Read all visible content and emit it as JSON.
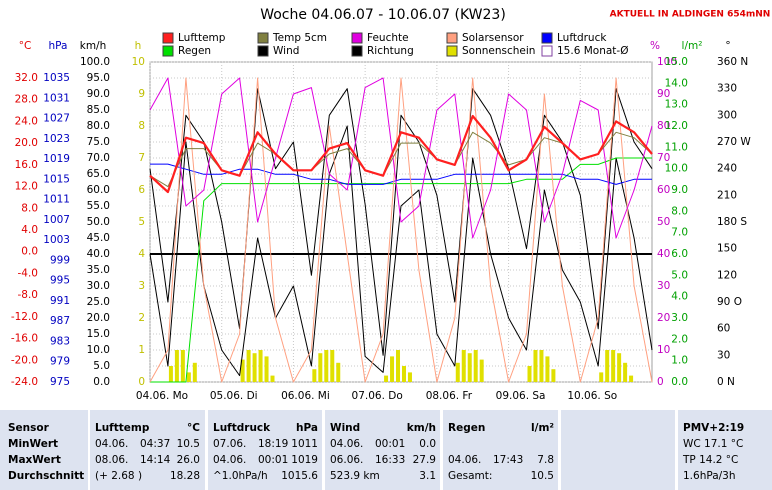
{
  "chart_data": {
    "type": "line",
    "title": "Woche 04.06.07 - 10.06.07 (KW23)",
    "subtitle": "AKTUELL IN ALDINGEN 654mNN",
    "grid": true,
    "xlim": [
      0,
      168
    ],
    "xticks": [
      {
        "value": 0,
        "label": "04.06. Mo"
      },
      {
        "value": 24,
        "label": "05.06. Di"
      },
      {
        "value": 48,
        "label": "06.06. Mi"
      },
      {
        "value": 72,
        "label": "07.06. Do"
      },
      {
        "value": 96,
        "label": "08.06. Fr"
      },
      {
        "value": 120,
        "label": "09.06. Sa"
      },
      {
        "value": 144,
        "label": "10.06. So"
      }
    ],
    "axes": [
      {
        "label": "°C",
        "color": "#e00000",
        "ylim": [
          -24,
          32
        ],
        "yticks": [
          {
            "value": 32,
            "label": "32.0"
          },
          {
            "value": 28,
            "label": "28.0"
          },
          {
            "value": 24,
            "label": "24.0"
          },
          {
            "value": 20,
            "label": "20.0"
          },
          {
            "value": 16,
            "label": "16.0"
          },
          {
            "value": 12,
            "label": "12.0"
          },
          {
            "value": 8,
            "label": "8.0"
          },
          {
            "value": 4,
            "label": "4.0"
          },
          {
            "value": 0,
            "label": "0.0"
          },
          {
            "value": -4,
            "label": "-4.0"
          },
          {
            "value": -8,
            "label": "-8.0"
          },
          {
            "value": -12,
            "label": "-12.0"
          },
          {
            "value": -16,
            "label": "-16.0"
          },
          {
            "value": -20,
            "label": "-20.0"
          },
          {
            "value": -24,
            "label": "-24.0"
          }
        ]
      },
      {
        "label": "hPa",
        "color": "#0000c0",
        "ylim": [
          975,
          1035
        ],
        "yticks": [
          1035,
          1031,
          1027,
          1023,
          1019,
          1015,
          1011,
          1007,
          1003,
          999,
          995,
          991,
          987,
          983,
          979,
          975
        ]
      },
      {
        "label": "km/h",
        "color": "#000000",
        "ylim": [
          0,
          100
        ],
        "yticks": [
          {
            "value": 100,
            "label": "100.0"
          },
          {
            "value": 95,
            "label": "95.0"
          },
          {
            "value": 90,
            "label": "90.0"
          },
          {
            "value": 85,
            "label": "85.0"
          },
          {
            "value": 80,
            "label": "80.0"
          },
          {
            "value": 75,
            "label": "75.0"
          },
          {
            "value": 70,
            "label": "70.0"
          },
          {
            "value": 65,
            "label": "65.0"
          },
          {
            "value": 60,
            "label": "60.0"
          },
          {
            "value": 55,
            "label": "55.0"
          },
          {
            "value": 50,
            "label": "50.0"
          },
          {
            "value": 45,
            "label": "45.0"
          },
          {
            "value": 40,
            "label": "40.0"
          },
          {
            "value": 35,
            "label": "35.0"
          },
          {
            "value": 30,
            "label": "30.0"
          },
          {
            "value": 25,
            "label": "25.0"
          },
          {
            "value": 20,
            "label": "20.0"
          },
          {
            "value": 15,
            "label": "15.0"
          },
          {
            "value": 10,
            "label": "10.0"
          },
          {
            "value": 5,
            "label": "5.0"
          },
          {
            "value": 0,
            "label": "0.0"
          }
        ]
      },
      {
        "label": "h",
        "color": "#c0c000",
        "ylim": [
          0,
          10
        ],
        "yticks": [
          10,
          9,
          8,
          7,
          6,
          5,
          4,
          3,
          2,
          1,
          0
        ]
      },
      {
        "label": "%",
        "color": "#c000c0",
        "ylim": [
          0,
          100
        ],
        "yticks": [
          100,
          90,
          80,
          70,
          60,
          50,
          40,
          30,
          20,
          10,
          0
        ]
      },
      {
        "label": "l/m²",
        "color": "#00a000",
        "ylim": [
          0,
          15
        ],
        "yticks": [
          {
            "value": 15,
            "label": "15.0"
          },
          {
            "value": 14,
            "label": "14.0"
          },
          {
            "value": 13,
            "label": "13.0"
          },
          {
            "value": 12,
            "label": "12.0"
          },
          {
            "value": 11,
            "label": "11.0"
          },
          {
            "value": 10,
            "label": "10.0"
          },
          {
            "value": 9,
            "label": "9.0"
          },
          {
            "value": 8,
            "label": "8.0"
          },
          {
            "value": 7,
            "label": "7.0"
          },
          {
            "value": 6,
            "label": "6.0"
          },
          {
            "value": 5,
            "label": "5.0"
          },
          {
            "value": 4,
            "label": "4.0"
          },
          {
            "value": 3,
            "label": "3.0"
          },
          {
            "value": 2,
            "label": "2.0"
          },
          {
            "value": 1,
            "label": "1.0"
          },
          {
            "value": 0,
            "label": "0.0"
          }
        ]
      },
      {
        "label": "°",
        "color": "#000000",
        "ylim": [
          0,
          360
        ],
        "yticks": [
          {
            "value": 360,
            "label": "360 N"
          },
          330,
          300,
          {
            "value": 270,
            "label": "270 W"
          },
          240,
          210,
          {
            "value": 180,
            "label": "180 S"
          },
          150,
          120,
          {
            "value": 90,
            "label": "90 O"
          },
          60,
          30,
          {
            "value": 0,
            "label": "0 N"
          }
        ]
      }
    ],
    "series": [
      {
        "name": "Lufttemp",
        "color": "#ff2020",
        "axis": 0,
        "x": [
          0,
          6,
          12,
          18,
          24,
          30,
          36,
          42,
          48,
          54,
          60,
          66,
          72,
          78,
          84,
          90,
          96,
          102,
          108,
          114,
          120,
          126,
          132,
          138,
          144,
          150,
          156,
          162,
          168
        ],
        "values": [
          14,
          11,
          21,
          20,
          15,
          14,
          22,
          18,
          15,
          15,
          19,
          20,
          15,
          14,
          22,
          21,
          17,
          16,
          25,
          21,
          15,
          17,
          23,
          20,
          17,
          18,
          24,
          22,
          18
        ]
      },
      {
        "name": "Temp 5cm",
        "color": "#808040",
        "axis": 0,
        "x": [
          0,
          6,
          12,
          18,
          24,
          30,
          36,
          42,
          48,
          54,
          60,
          66,
          72,
          78,
          84,
          90,
          96,
          102,
          108,
          114,
          120,
          126,
          132,
          138,
          144,
          150,
          156,
          162,
          168
        ],
        "values": [
          14,
          12,
          19,
          19,
          15,
          14,
          20,
          18,
          15,
          15,
          18,
          19,
          15,
          14,
          20,
          20,
          17,
          16,
          22,
          20,
          16,
          17,
          21,
          20,
          17,
          18,
          22,
          21,
          18
        ]
      },
      {
        "name": "Feuchte",
        "color": "#e000e0",
        "axis": 4,
        "x": [
          0,
          6,
          12,
          18,
          24,
          30,
          36,
          42,
          48,
          54,
          60,
          66,
          72,
          78,
          84,
          90,
          96,
          102,
          108,
          114,
          120,
          126,
          132,
          138,
          144,
          150,
          156,
          162,
          168
        ],
        "values": [
          85,
          95,
          55,
          60,
          90,
          95,
          50,
          70,
          90,
          92,
          65,
          60,
          92,
          95,
          50,
          55,
          85,
          90,
          45,
          60,
          90,
          85,
          50,
          65,
          88,
          85,
          45,
          60,
          80
        ]
      },
      {
        "name": "Solarsensor",
        "color": "#ffa080",
        "axis": 4,
        "x": [
          0,
          6,
          12,
          18,
          24,
          30,
          36,
          42,
          48,
          54,
          60,
          66,
          72,
          78,
          84,
          90,
          96,
          102,
          108,
          114,
          120,
          126,
          132,
          138,
          144,
          150,
          156,
          162,
          168
        ],
        "values": [
          0,
          10,
          95,
          30,
          0,
          15,
          95,
          20,
          0,
          10,
          80,
          40,
          0,
          15,
          95,
          35,
          0,
          20,
          95,
          30,
          0,
          15,
          90,
          30,
          0,
          20,
          95,
          30,
          0
        ]
      },
      {
        "name": "Luftdruck",
        "color": "#0000ff",
        "axis": 1,
        "x": [
          0,
          6,
          12,
          18,
          24,
          30,
          36,
          42,
          48,
          54,
          60,
          66,
          72,
          78,
          84,
          90,
          96,
          102,
          108,
          114,
          120,
          126,
          132,
          138,
          144,
          150,
          156,
          162,
          168
        ],
        "values": [
          1018,
          1018,
          1017,
          1016,
          1016,
          1017,
          1017,
          1016,
          1016,
          1015,
          1015,
          1014,
          1014,
          1014,
          1015,
          1015,
          1015,
          1016,
          1016,
          1016,
          1016,
          1016,
          1016,
          1016,
          1015,
          1015,
          1014,
          1015,
          1015
        ]
      },
      {
        "name": "Regen",
        "color": "#00e000",
        "axis": 5,
        "x": [
          0,
          6,
          12,
          18,
          24,
          30,
          36,
          42,
          48,
          54,
          60,
          66,
          72,
          78,
          84,
          90,
          96,
          102,
          108,
          114,
          120,
          126,
          132,
          138,
          144,
          150,
          156,
          162,
          168
        ],
        "values": [
          0,
          0,
          0,
          8.5,
          9.3,
          9.3,
          9.3,
          9.3,
          9.3,
          9.3,
          9.3,
          9.3,
          9.3,
          9.3,
          9.3,
          9.3,
          9.3,
          9.3,
          9.3,
          9.3,
          9.3,
          9.5,
          9.5,
          9.5,
          10.2,
          10.2,
          10.5,
          10.5,
          10.5
        ]
      },
      {
        "name": "Wind",
        "color": "#000000",
        "axis": 2,
        "x": [
          0,
          6,
          12,
          18,
          24,
          30,
          36,
          42,
          48,
          54,
          60,
          66,
          72,
          78,
          84,
          90,
          96,
          102,
          108,
          114,
          120,
          126,
          132,
          138,
          144,
          150,
          156,
          162,
          168
        ],
        "values": [
          40,
          5,
          75,
          30,
          10,
          2,
          45,
          20,
          30,
          5,
          65,
          80,
          8,
          3,
          55,
          60,
          15,
          5,
          70,
          40,
          20,
          10,
          60,
          35,
          25,
          5,
          70,
          45,
          10
        ]
      },
      {
        "name": "Richtung",
        "color": "#000000",
        "axis": 6,
        "x": [
          0,
          6,
          12,
          18,
          24,
          30,
          36,
          42,
          48,
          54,
          60,
          66,
          72,
          78,
          84,
          90,
          96,
          102,
          108,
          114,
          120,
          126,
          132,
          138,
          144,
          150,
          156,
          162,
          168
        ],
        "values": [
          240,
          90,
          300,
          270,
          180,
          60,
          330,
          240,
          270,
          120,
          300,
          330,
          200,
          30,
          300,
          270,
          210,
          90,
          330,
          300,
          240,
          150,
          300,
          270,
          210,
          60,
          330,
          270,
          240
        ]
      },
      {
        "name": "Sonnenschein",
        "color": "#e0e000",
        "axis": 3,
        "type": "bar",
        "x": [
          1,
          3,
          5,
          7,
          9,
          11,
          13,
          15,
          17,
          19,
          21,
          23,
          25,
          27,
          29,
          31,
          33,
          35,
          37,
          39,
          41,
          43,
          45,
          47,
          49,
          51,
          53,
          55,
          57,
          59,
          61,
          63,
          65,
          67,
          69,
          71,
          73,
          75,
          77,
          79,
          81,
          83,
          85,
          87,
          89,
          91,
          93,
          95,
          97,
          99,
          101,
          103,
          105,
          107,
          109,
          111,
          113,
          115,
          117,
          119,
          121,
          123,
          125,
          127,
          129,
          131,
          133,
          135,
          137,
          139,
          141,
          143,
          145,
          147,
          149,
          151,
          153,
          155,
          157,
          159,
          161,
          163,
          165,
          167
        ],
        "values": [
          0,
          0,
          0,
          0.5,
          1.0,
          1.0,
          0.3,
          0.6,
          0,
          0,
          0,
          0,
          0,
          0,
          0,
          0.7,
          1.0,
          0.9,
          1.0,
          0.8,
          0.2,
          0,
          0,
          0,
          0,
          0,
          0,
          0.4,
          0.9,
          1.0,
          1.0,
          0.6,
          0,
          0,
          0,
          0,
          0,
          0,
          0,
          0.2,
          0.8,
          1.0,
          0.5,
          0.3,
          0,
          0,
          0,
          0,
          0,
          0,
          0,
          0.6,
          1.0,
          0.9,
          1.0,
          0.7,
          0,
          0,
          0,
          0,
          0,
          0,
          0,
          0.5,
          1.0,
          1.0,
          0.8,
          0.4,
          0,
          0,
          0,
          0,
          0,
          0,
          0,
          0.3,
          1.0,
          1.0,
          0.9,
          0.6,
          0.2,
          0,
          0,
          0
        ]
      },
      {
        "name": "15.6 Monat-Ø",
        "color": "#000000",
        "axis": 3,
        "type": "hline",
        "values": [
          4
        ]
      }
    ]
  },
  "table": {
    "header": [
      [
        "Sensor"
      ],
      [
        "Lufttemp",
        "°C"
      ],
      [
        "Luftdruck",
        "hPa"
      ],
      [
        "Wind",
        "km/h"
      ],
      [
        "Regen",
        "l/m²"
      ],
      [
        "PMV+2:19"
      ]
    ],
    "rows": [
      [
        [
          "MinWert"
        ],
        [
          "04.06.",
          "04:37",
          "10.5"
        ],
        [
          "07.06.",
          "18:19",
          "1011"
        ],
        [
          "04.06.",
          "00:01",
          "0.0"
        ],
        [],
        [
          "WC 17.1 °C"
        ]
      ],
      [
        [
          "MaxWert"
        ],
        [
          "08.06.",
          "14:14",
          "26.0"
        ],
        [
          "04.06.",
          "00:01",
          "1019"
        ],
        [
          "06.06.",
          "16:33",
          "27.9"
        ],
        [
          "04.06.",
          "17:43",
          "7.8"
        ],
        [
          "TP 14.2 °C"
        ]
      ],
      [
        [
          "Durchschnitt"
        ],
        [
          "(+ 2.68 )",
          "18.28"
        ],
        [
          "^1.0hPa/h",
          "1015.6"
        ],
        [
          "523.9 km",
          "3.1"
        ],
        [
          "Gesamt:",
          "10.5"
        ],
        [
          "1.6hPa/3h"
        ]
      ]
    ]
  }
}
